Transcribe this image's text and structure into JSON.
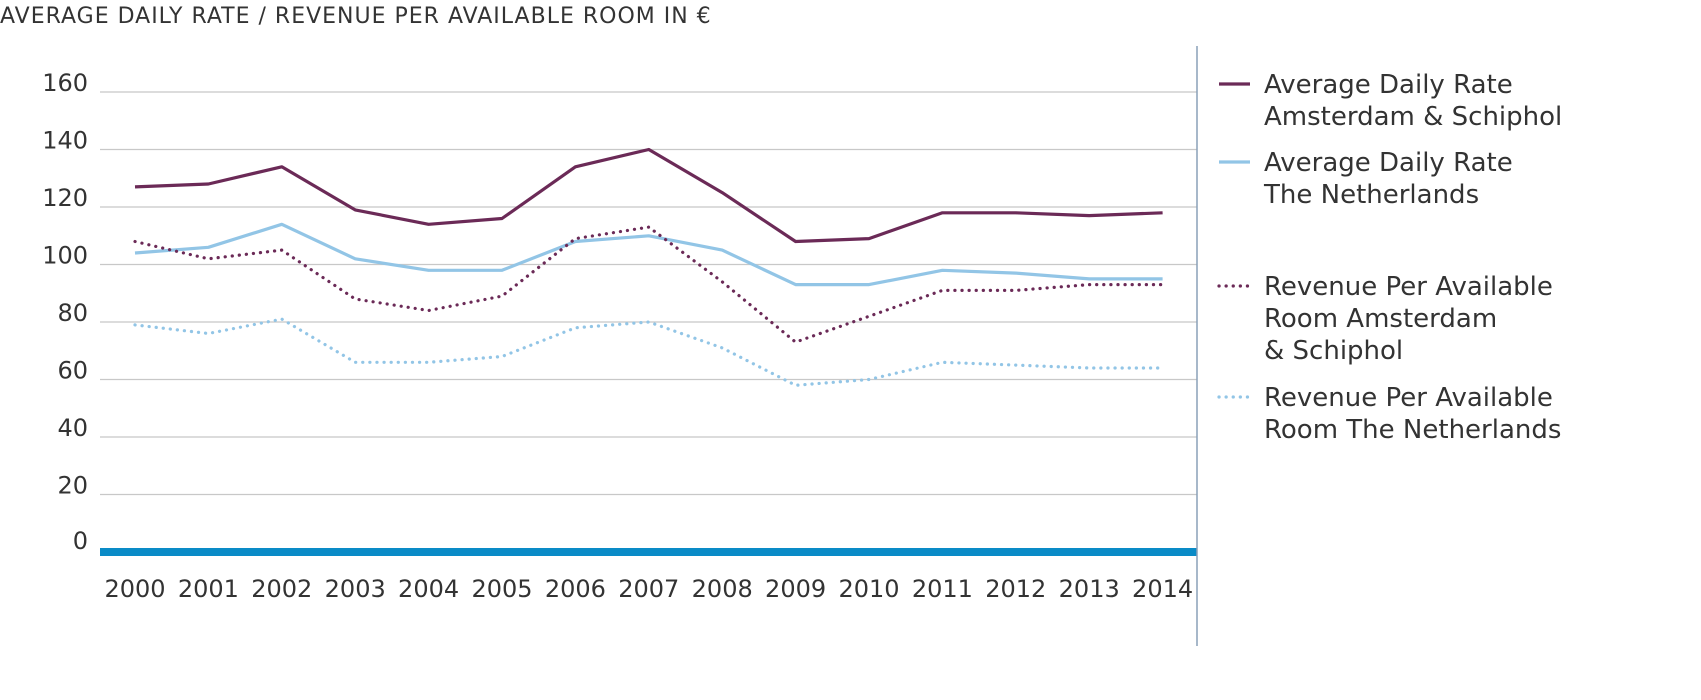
{
  "chart_data": {
    "type": "line",
    "title": "AVERAGE DAILY RATE / REVENUE PER AVAILABLE ROOM IN €",
    "xlabel": "",
    "ylabel": "",
    "ylim": [
      0,
      160
    ],
    "yticks": [
      0,
      20,
      40,
      60,
      80,
      100,
      120,
      140,
      160
    ],
    "categories": [
      "2000",
      "2001",
      "2002",
      "2003",
      "2004",
      "2005",
      "2006",
      "2007",
      "2008",
      "2009",
      "2010",
      "2011",
      "2012",
      "2013",
      "2014"
    ],
    "grid": true,
    "legend_position": "right",
    "series": [
      {
        "name_lines": [
          "Average Daily Rate",
          "Amsterdam & Schiphol"
        ],
        "style": "solid",
        "color": "#6b2a57",
        "values": [
          127,
          128,
          134,
          119,
          114,
          116,
          134,
          140,
          125,
          108,
          109,
          118,
          118,
          117,
          118
        ]
      },
      {
        "name_lines": [
          "Average Daily Rate",
          "The Netherlands"
        ],
        "style": "solid",
        "color": "#92c5e6",
        "values": [
          104,
          106,
          114,
          102,
          98,
          98,
          108,
          110,
          105,
          93,
          93,
          98,
          97,
          95,
          95
        ]
      },
      {
        "name_lines": [
          "Revenue Per Available",
          "Room Amsterdam",
          "& Schiphol"
        ],
        "style": "dotted",
        "color": "#6b2a57",
        "values": [
          108,
          102,
          105,
          88,
          84,
          89,
          109,
          113,
          94,
          73,
          82,
          91,
          91,
          93,
          93
        ]
      },
      {
        "name_lines": [
          "Revenue Per Available",
          "Room The Netherlands"
        ],
        "style": "dotted",
        "color": "#92c5e6",
        "values": [
          79,
          76,
          81,
          66,
          66,
          68,
          78,
          80,
          71,
          58,
          60,
          66,
          65,
          64,
          64
        ]
      }
    ],
    "colors": {
      "grid": "#c8c8c8",
      "baseline": "#0a8bc7",
      "divider": "#8aa0b8"
    }
  }
}
